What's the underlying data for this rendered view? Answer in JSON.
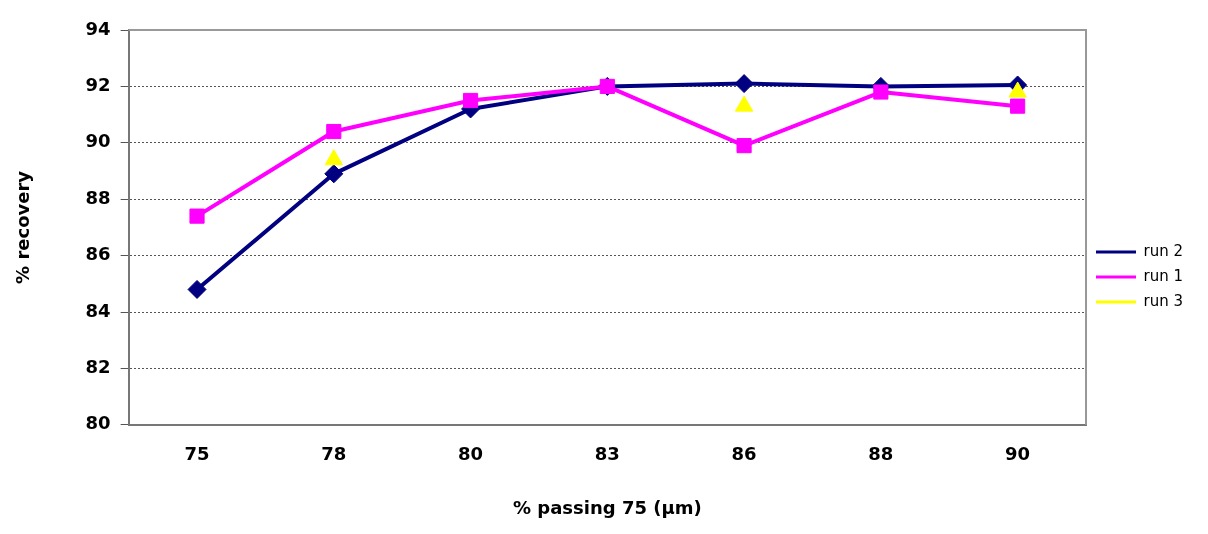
{
  "chart_data": {
    "type": "line",
    "xlabel": "% passing 75 (µm)",
    "ylabel": "% recovery",
    "categories": [
      "75",
      "78",
      "80",
      "83",
      "86",
      "88",
      "90"
    ],
    "series": [
      {
        "name": "run 2",
        "color": "#000080",
        "marker": "diamond",
        "values": [
          84.8,
          88.9,
          91.2,
          92.0,
          92.1,
          92.0,
          92.05
        ]
      },
      {
        "name": "run 1",
        "color": "#ff00ff",
        "marker": "square",
        "values": [
          87.4,
          90.4,
          91.5,
          92.0,
          89.9,
          91.8,
          91.3
        ]
      },
      {
        "name": "run 3",
        "type": "scatter",
        "color": "#ffff00",
        "marker": "triangle",
        "values": [
          null,
          89.4,
          null,
          null,
          91.3,
          null,
          91.8
        ]
      }
    ],
    "ylim": [
      80,
      94
    ],
    "yticks": [
      80,
      82,
      84,
      86,
      88,
      90,
      92,
      94
    ],
    "grid": "y",
    "legend": "right",
    "line_style": "solid"
  }
}
